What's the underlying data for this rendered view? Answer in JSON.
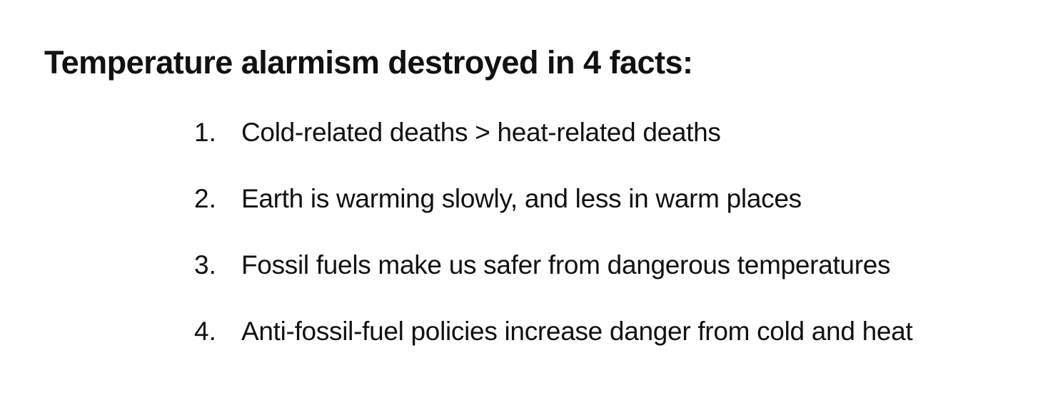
{
  "title": "Temperature alarmism destroyed in 4 facts:",
  "facts": [
    {
      "number": "1.",
      "text": "Cold-related deaths > heat-related deaths"
    },
    {
      "number": "2.",
      "text": "Earth is warming slowly, and less in warm places"
    },
    {
      "number": "3.",
      "text": "Fossil fuels make us safer from dangerous temperatures"
    },
    {
      "number": "4.",
      "text": "Anti-fossil-fuel policies increase danger from cold and heat"
    }
  ]
}
